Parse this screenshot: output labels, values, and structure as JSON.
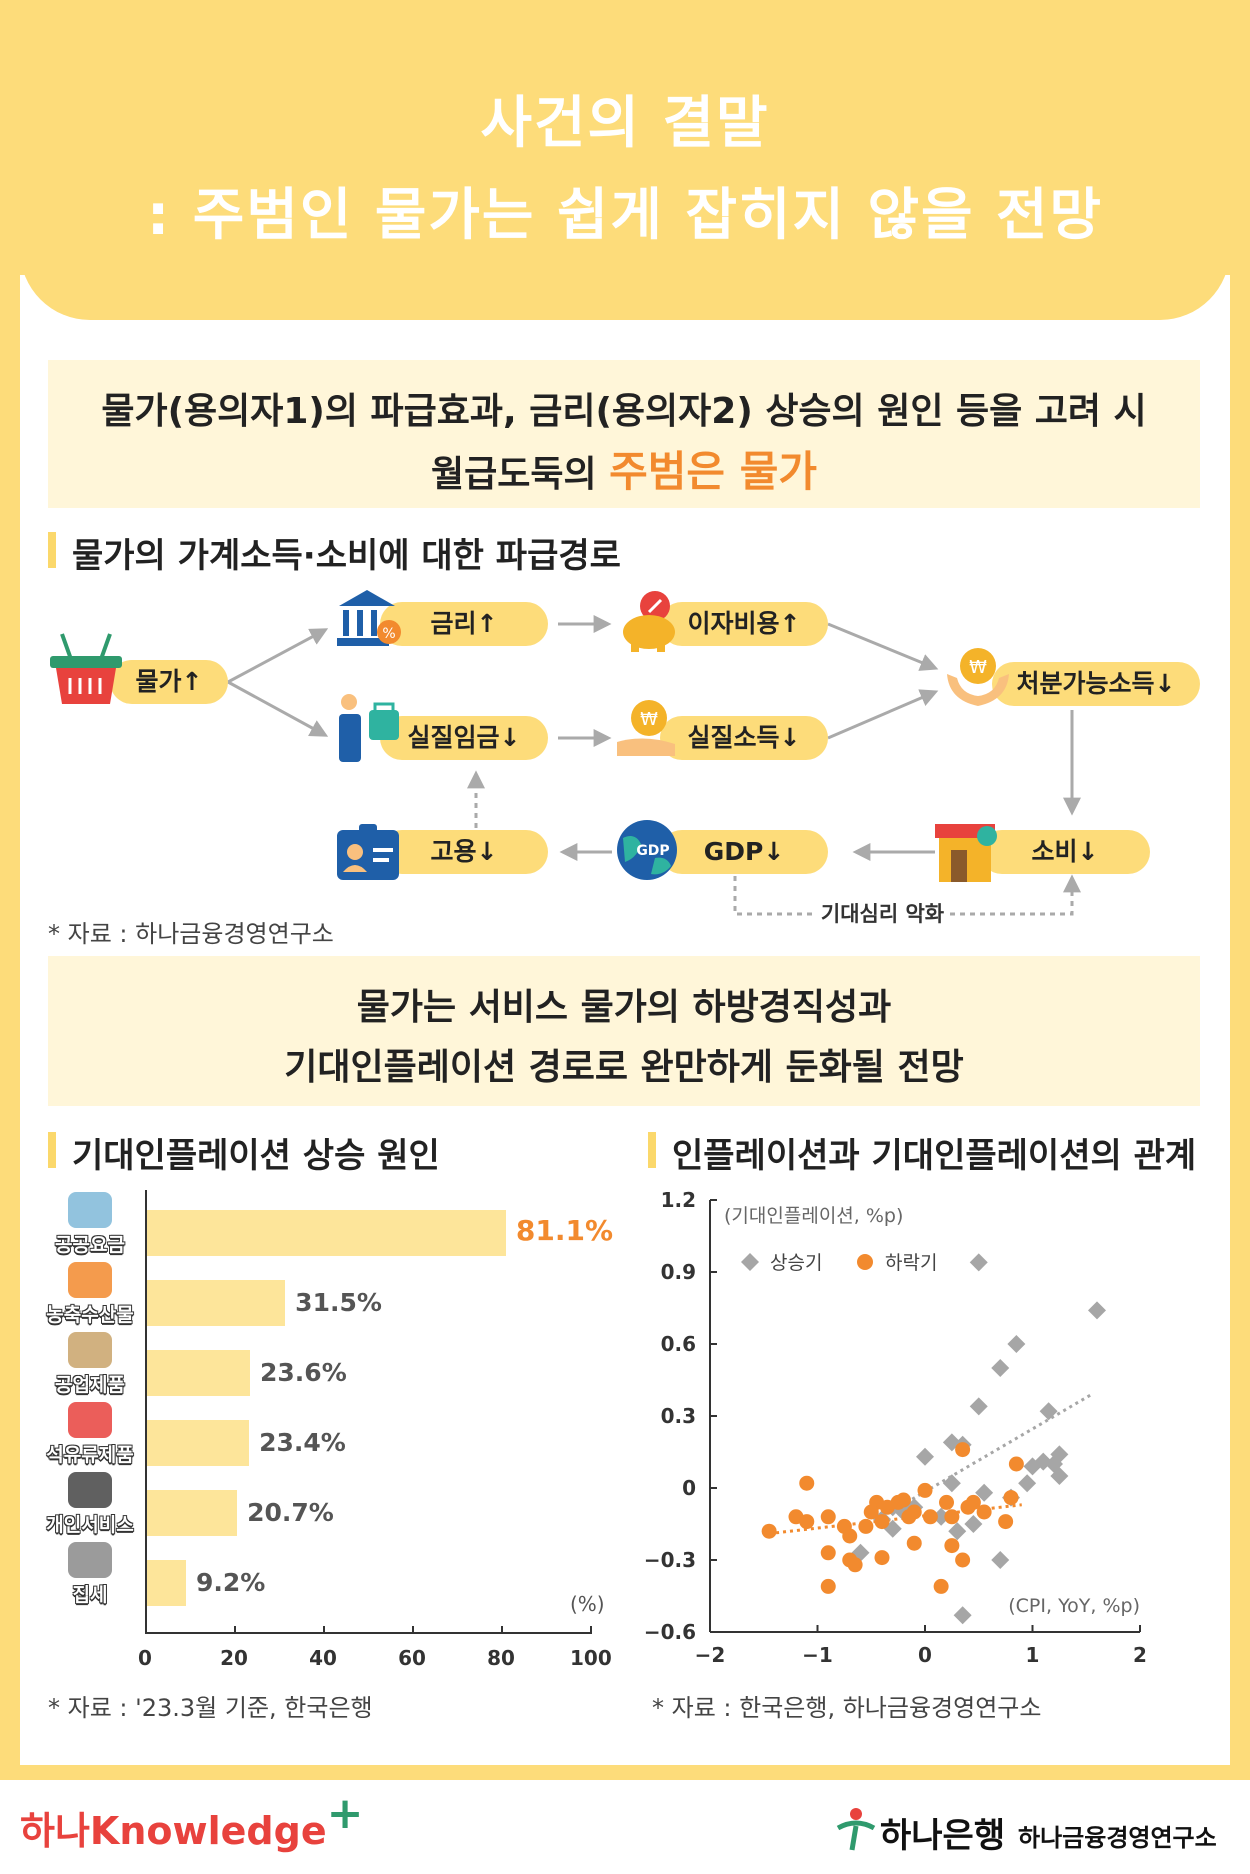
{
  "header": {
    "title_line1": "사건의 결말",
    "title_line2": ": 주범인 물가는 쉽게 잡히지 않을 전망"
  },
  "band1": {
    "line1": "물가(용의자1)의 파급효과, 금리(용의자2) 상승의 원인 등을 고려 시",
    "line2_prefix": "월급도둑의 ",
    "line2_highlight": "주범은 물가"
  },
  "flow": {
    "section_title": "물가의 가계소득·소비에 대한 파급경로",
    "nodes": {
      "price": "물가↑",
      "rate": "금리↑",
      "interest": "이자비용↑",
      "disposable": "처분가능소득↓",
      "real_wage": "실질임금↓",
      "real_income": "실질소득↓",
      "consumption": "소비↓",
      "gdp": "GDP↓",
      "employment": "고용↓"
    },
    "gdp_icon_text": "GDP",
    "dashed_label": "기대심리 악화",
    "source": "* 자료 : 하나금융경영연구소"
  },
  "band2": {
    "line1": "물가는 서비스 물가의 하방경직성과",
    "line2": "기대인플레이션 경로로 완만하게 둔화될 전망"
  },
  "bar_section": {
    "title": "기대인플레이션 상승 원인",
    "unit": "(%)",
    "source": "* 자료 : '23.3월 기준, 한국은행",
    "highlight_color": "#f28a2e"
  },
  "scatter_section": {
    "title": "인플레이션과 기대인플레이션의 관계",
    "y_unit": "(기대인플레이션, %p)",
    "x_unit": "(CPI, YoY, %p)",
    "source": "* 자료 : 한국은행, 하나금융경영연구소"
  },
  "chart_data": [
    {
      "type": "bar",
      "orientation": "horizontal",
      "categories": [
        "공공요금",
        "농축수산물",
        "공업제품",
        "석유류제품",
        "개인서비스",
        "집세"
      ],
      "values": [
        81.1,
        31.5,
        23.6,
        23.4,
        20.7,
        9.2
      ],
      "value_labels": [
        "81.1%",
        "31.5%",
        "23.6%",
        "23.4%",
        "20.7%",
        "9.2%"
      ],
      "xlim": [
        0,
        100
      ],
      "xticks": [
        "0",
        "20",
        "40",
        "60",
        "80",
        "100"
      ],
      "xlabel": "(%)",
      "colors": {
        "bar": "#fde59a",
        "top_label": "#f28a2e"
      }
    },
    {
      "type": "scatter",
      "xlim": [
        -2,
        2
      ],
      "ylim": [
        -0.6,
        1.2
      ],
      "xticks": [
        "−2",
        "−1",
        "0",
        "1",
        "2"
      ],
      "yticks": [
        "−0.6",
        "−0.3",
        "0",
        "0.3",
        "0.6",
        "0.9",
        "1.2"
      ],
      "xlabel": "(CPI, YoY, %p)",
      "ylabel": "(기대인플레이션, %p)",
      "legend_position": "top-left",
      "series": [
        {
          "name": "상승기",
          "color": "#a6a6a6",
          "marker": "diamond",
          "points": [
            [
              0.5,
              0.94
            ],
            [
              1.6,
              0.74
            ],
            [
              0.85,
              0.6
            ],
            [
              0.7,
              0.5
            ],
            [
              0.5,
              0.34
            ],
            [
              1.15,
              0.32
            ],
            [
              0.25,
              0.19
            ],
            [
              0.35,
              0.18
            ],
            [
              0.0,
              0.13
            ],
            [
              1.0,
              0.09
            ],
            [
              1.1,
              0.11
            ],
            [
              1.25,
              0.14
            ],
            [
              1.2,
              0.1
            ],
            [
              1.25,
              0.05
            ],
            [
              0.95,
              0.02
            ],
            [
              0.25,
              0.02
            ],
            [
              0.55,
              -0.02
            ],
            [
              0.8,
              -0.04
            ],
            [
              -0.1,
              -0.08
            ],
            [
              -0.2,
              -0.1
            ],
            [
              -0.3,
              -0.08
            ],
            [
              0.15,
              -0.12
            ],
            [
              0.45,
              -0.15
            ],
            [
              -0.4,
              -0.13
            ],
            [
              -0.3,
              -0.17
            ],
            [
              0.3,
              -0.18
            ],
            [
              -0.6,
              -0.27
            ],
            [
              0.7,
              -0.3
            ],
            [
              0.35,
              -0.53
            ]
          ]
        },
        {
          "name": "하락기",
          "color": "#f28a2e",
          "marker": "circle",
          "points": [
            [
              -1.1,
              0.02
            ],
            [
              -1.45,
              -0.18
            ],
            [
              -1.2,
              -0.12
            ],
            [
              -1.1,
              -0.14
            ],
            [
              -0.9,
              -0.12
            ],
            [
              -0.75,
              -0.16
            ],
            [
              -0.7,
              -0.2
            ],
            [
              -0.55,
              -0.16
            ],
            [
              -0.45,
              -0.06
            ],
            [
              -0.4,
              -0.14
            ],
            [
              -0.35,
              -0.08
            ],
            [
              -0.25,
              -0.06
            ],
            [
              -0.15,
              -0.12
            ],
            [
              -0.1,
              -0.1
            ],
            [
              0.0,
              -0.01
            ],
            [
              0.05,
              -0.12
            ],
            [
              0.2,
              -0.06
            ],
            [
              0.25,
              -0.12
            ],
            [
              0.35,
              0.16
            ],
            [
              0.4,
              -0.08
            ],
            [
              0.45,
              -0.06
            ],
            [
              0.55,
              -0.1
            ],
            [
              0.85,
              0.1
            ],
            [
              0.75,
              -0.14
            ],
            [
              0.8,
              -0.04
            ],
            [
              -0.9,
              -0.27
            ],
            [
              -0.65,
              -0.32
            ],
            [
              -0.4,
              -0.29
            ],
            [
              -0.9,
              -0.41
            ],
            [
              0.15,
              -0.41
            ],
            [
              -0.1,
              -0.23
            ],
            [
              0.25,
              -0.24
            ],
            [
              0.35,
              -0.3
            ],
            [
              -0.7,
              -0.3
            ],
            [
              -0.2,
              -0.05
            ],
            [
              -0.5,
              -0.1
            ]
          ]
        }
      ],
      "trendlines": [
        {
          "series": "상승기",
          "x": [
            -0.4,
            1.55
          ],
          "y": [
            -0.12,
            0.39
          ],
          "style": "dotted"
        },
        {
          "series": "하락기",
          "x": [
            -1.45,
            0.9
          ],
          "y": [
            -0.19,
            -0.07
          ],
          "style": "dotted"
        }
      ]
    }
  ],
  "footer": {
    "brand_left": "하나Knowledge",
    "brand_left_plus": "+",
    "brand_right": "하나은행",
    "brand_right_sub": "하나금융경영연구소"
  }
}
